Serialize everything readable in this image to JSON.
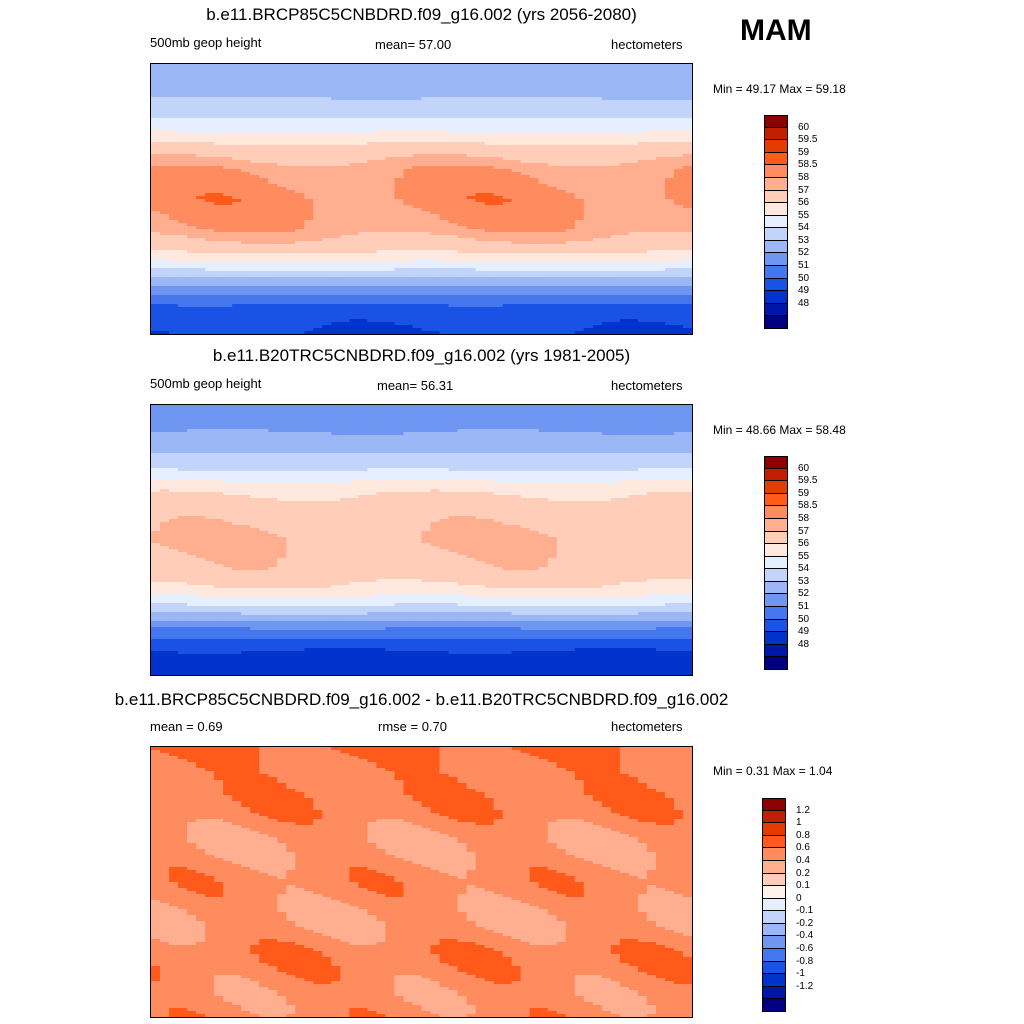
{
  "season": "MAM",
  "colors": {
    "abs_levels": [
      "#000080",
      "#0015a9",
      "#0033cc",
      "#1a52e6",
      "#4477ee",
      "#6f97f2",
      "#9bb7f6",
      "#c3d4fa",
      "#e6efff",
      "#ffe9df",
      "#ffcdb8",
      "#ffae8f",
      "#ff8c5f",
      "#ff5a1a",
      "#e63b00",
      "#c21f00",
      "#8c0000"
    ],
    "diff_levels": [
      "#000080",
      "#0015a9",
      "#0033cc",
      "#1a52e6",
      "#4477ee",
      "#6f97f2",
      "#9bb7f6",
      "#c3d4fa",
      "#e6efff",
      "#fff2ea",
      "#ffcdb8",
      "#ffae8f",
      "#ff8c5f",
      "#ff5a1a",
      "#e63b00",
      "#c21f00",
      "#8c0000"
    ]
  },
  "chart_data": [
    {
      "type": "heatmap",
      "title": "b.e11.BRCP85C5CNBDRD.f09_g16.002 (yrs 2056-2080)",
      "left_label": "500mb geop height",
      "center_label": "mean=  57.00",
      "units": "hectometers",
      "minmax": "Min =  49.17 Max =  59.18",
      "min": 49.17,
      "max": 59.18,
      "levels": [
        "60",
        "59.5",
        "59",
        "58.5",
        "58",
        "57",
        "56",
        "55",
        "54",
        "53",
        "52",
        "51",
        "50",
        "49",
        "48"
      ],
      "lat_profile": [
        [
          90,
          53.4
        ],
        [
          75,
          53.5
        ],
        [
          60,
          54.5
        ],
        [
          48,
          55.5
        ],
        [
          40,
          56.6
        ],
        [
          32,
          57.6
        ],
        [
          20,
          58.4
        ],
        [
          0,
          58.7
        ],
        [
          -20,
          58.4
        ],
        [
          -32,
          57.6
        ],
        [
          -42,
          56.0
        ],
        [
          -50,
          54.5
        ],
        [
          -60,
          52.5
        ],
        [
          -70,
          51.0
        ],
        [
          -80,
          50.2
        ],
        [
          -90,
          50.0
        ]
      ]
    },
    {
      "type": "heatmap",
      "title": "b.e11.B20TRC5CNBDRD.f09_g16.002 (yrs 1981-2005)",
      "left_label": "500mb geop height",
      "center_label": "mean=  56.31",
      "units": "hectometers",
      "minmax": "Min =  48.66 Max =  58.48",
      "min": 48.66,
      "max": 58.48,
      "levels": [
        "60",
        "59.5",
        "59",
        "58.5",
        "58",
        "57",
        "56",
        "55",
        "54",
        "53",
        "52",
        "51",
        "50",
        "49",
        "48"
      ],
      "lat_profile": [
        [
          90,
          52.6
        ],
        [
          75,
          52.8
        ],
        [
          60,
          53.8
        ],
        [
          48,
          54.8
        ],
        [
          40,
          55.9
        ],
        [
          32,
          56.9
        ],
        [
          20,
          57.6
        ],
        [
          0,
          58.0
        ],
        [
          -20,
          57.7
        ],
        [
          -32,
          56.9
        ],
        [
          -42,
          55.3
        ],
        [
          -50,
          53.8
        ],
        [
          -60,
          51.8
        ],
        [
          -70,
          50.3
        ],
        [
          -80,
          49.5
        ],
        [
          -90,
          49.3
        ]
      ]
    },
    {
      "type": "heatmap",
      "title": "b.e11.BRCP85C5CNBDRD.f09_g16.002 - b.e11.B20TRC5CNBDRD.f09_g16.002",
      "left_label": "mean =   0.69",
      "center_label": "rmse =   0.70",
      "units": "hectometers",
      "minmax": "Min =   0.31 Max =   1.04",
      "min": 0.31,
      "max": 1.04,
      "levels": [
        "1.2",
        "1",
        "0.8",
        "0.6",
        "0.4",
        "0.2",
        "0.1",
        "0",
        "-0.1",
        "-0.2",
        "-0.4",
        "-0.6",
        "-0.8",
        "-1",
        "-1.2"
      ],
      "lat_profile": [
        [
          90,
          0.82
        ],
        [
          70,
          0.78
        ],
        [
          50,
          0.7
        ],
        [
          30,
          0.66
        ],
        [
          10,
          0.66
        ],
        [
          -10,
          0.66
        ],
        [
          -30,
          0.66
        ],
        [
          -50,
          0.7
        ],
        [
          -70,
          0.72
        ],
        [
          -90,
          0.7
        ]
      ]
    }
  ]
}
